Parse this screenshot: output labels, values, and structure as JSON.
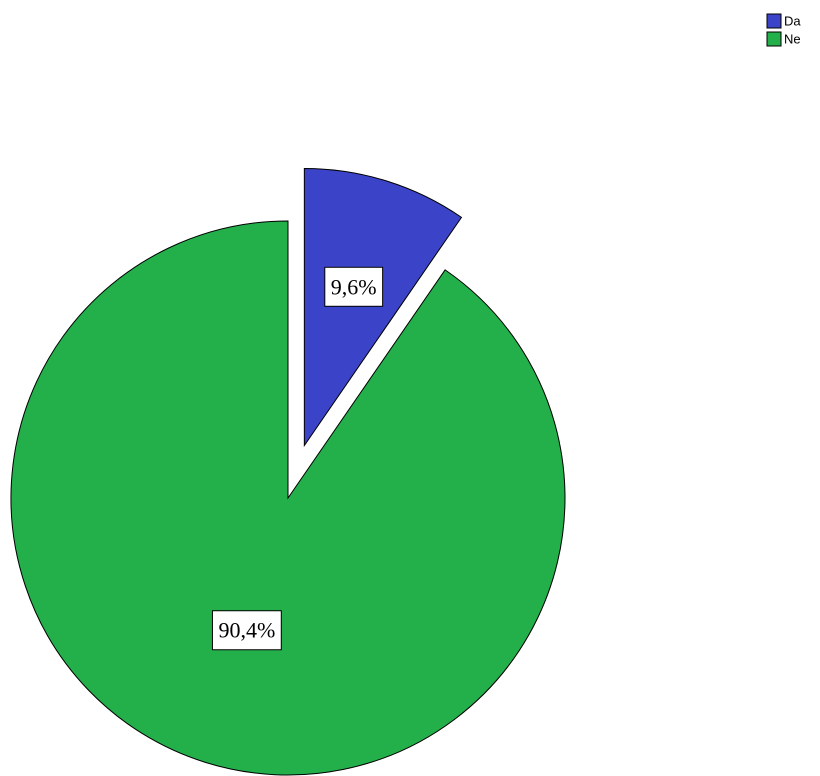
{
  "chart_data": {
    "type": "pie",
    "title": "",
    "legend": {
      "placement": "top-right",
      "entries": [
        {
          "label": "Da",
          "color": "#3b44c8"
        },
        {
          "label": "Ne",
          "color": "#23b04b"
        }
      ]
    },
    "slices": [
      {
        "label": "Da",
        "value": 9.6,
        "display": "9,6%",
        "color": "#3b44c8",
        "exploded": true
      },
      {
        "label": "Ne",
        "value": 90.4,
        "display": "90,4%",
        "color": "#23b04b",
        "exploded": false
      }
    ],
    "start_angle_deg": 0,
    "direction": "clockwise"
  }
}
